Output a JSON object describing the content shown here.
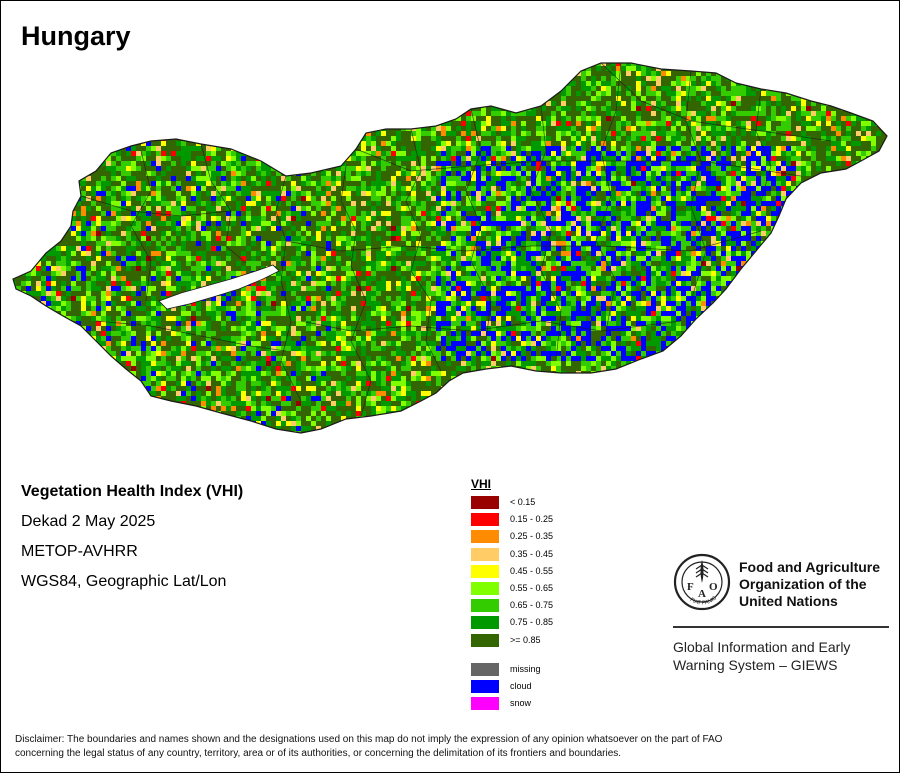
{
  "title": "Hungary",
  "info": {
    "index_name": "Vegetation Health Index (VHI)",
    "period": "Dekad 2 May 2025",
    "sensor": "METOP-AVHRR",
    "projection": "WGS84, Geographic Lat/Lon"
  },
  "legend": {
    "title": "VHI",
    "classes": [
      {
        "label": "< 0.15",
        "color": "#990000"
      },
      {
        "label": "0.15 - 0.25",
        "color": "#ff0000"
      },
      {
        "label": "0.25 - 0.35",
        "color": "#ff8c00"
      },
      {
        "label": "0.35 - 0.45",
        "color": "#ffcc66"
      },
      {
        "label": "0.45 - 0.55",
        "color": "#ffff00"
      },
      {
        "label": "0.55 - 0.65",
        "color": "#80ff00"
      },
      {
        "label": "0.65 - 0.75",
        "color": "#33cc00"
      },
      {
        "label": "0.75 - 0.85",
        "color": "#009900"
      },
      {
        "label": ">= 0.85",
        "color": "#336600"
      }
    ],
    "special": [
      {
        "label": "missing",
        "color": "#666666"
      },
      {
        "label": "cloud",
        "color": "#0000ff"
      },
      {
        "label": "snow",
        "color": "#ff00ff"
      }
    ]
  },
  "fao": {
    "name_line1": "Food and Agriculture",
    "name_line2": "Organization of the",
    "name_line3": "United Nations",
    "logo_text": "FAO",
    "logo_motto": "FIAT PANIS",
    "giews_line1": "Global Information and Early",
    "giews_line2": "Warning System – GIEWS"
  },
  "disclaimer_line1": "Disclaimer: The boundaries and names shown and the designations used on this map do not imply the expression of any opinion whatsoever on the part of FAO",
  "disclaimer_line2": "concerning the legal status of any country, territory, area or of its authorities, or concerning the delimitation of its frontiers and boundaries."
}
